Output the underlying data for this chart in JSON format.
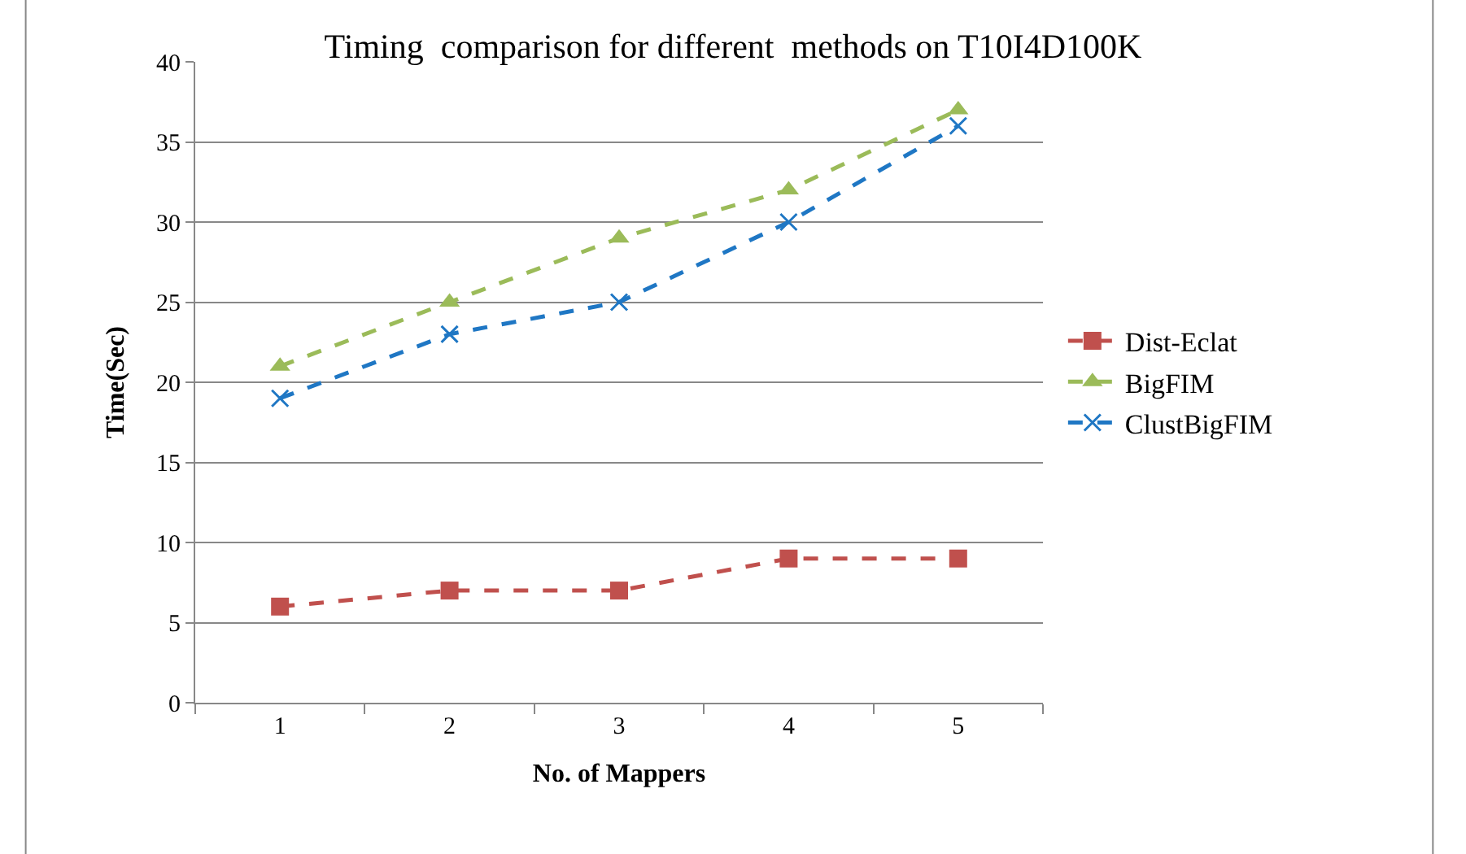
{
  "chart_data": {
    "type": "line",
    "title": "Timing  comparison for different  methods on T10I4D100K",
    "xlabel": "No. of Mappers",
    "ylabel": "Time(Sec)",
    "categories": [
      "1",
      "2",
      "3",
      "4",
      "5"
    ],
    "series": [
      {
        "name": "Dist-Eclat",
        "color": "#c0504d",
        "marker": "square",
        "values": [
          6,
          7,
          7,
          9,
          9
        ]
      },
      {
        "name": "BigFIM",
        "color": "#9bbb59",
        "marker": "triangle",
        "values": [
          21,
          25,
          29,
          32,
          37
        ]
      },
      {
        "name": "ClustBigFIM",
        "color": "#1f77c4",
        "marker": "cross",
        "values": [
          19,
          23,
          25,
          30,
          36
        ]
      }
    ],
    "ylim": [
      0,
      40
    ],
    "yticks": [
      0,
      5,
      10,
      15,
      20,
      25,
      30,
      35,
      40
    ],
    "grid": "y",
    "legend": "right",
    "line_style": "dashed"
  }
}
